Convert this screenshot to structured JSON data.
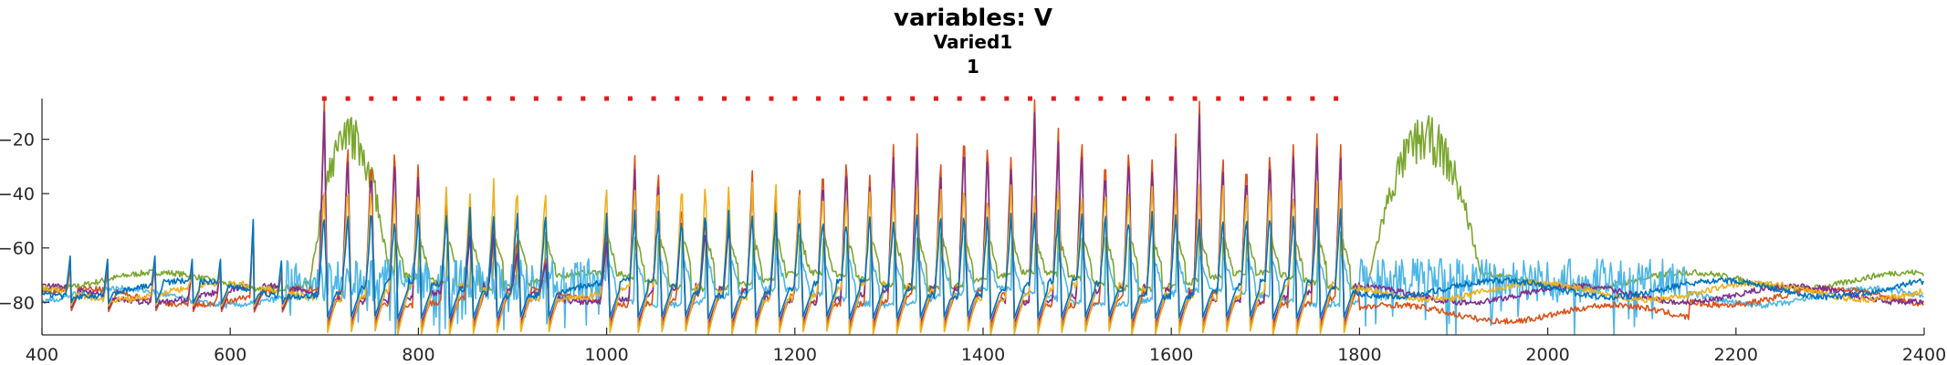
{
  "chart_data": {
    "type": "line",
    "title": [
      "variables: V",
      "Varied1",
      "1"
    ],
    "xlabel": "",
    "ylabel": "",
    "xlim": [
      400,
      2400
    ],
    "ylim": [
      -92,
      -5
    ],
    "xticks": [
      400,
      600,
      800,
      1000,
      1200,
      1400,
      1600,
      1800,
      2000,
      2200,
      2400
    ],
    "yticks": [
      -20,
      -40,
      -60,
      -80
    ],
    "grid": false,
    "legend": "none",
    "spike_markers": {
      "color": "#e31a1c",
      "y": -5,
      "x_start": 700,
      "x_end": 1775,
      "step": 25
    },
    "series": [
      {
        "color": "#7aa62e",
        "baseline": -72,
        "spike_to": -55,
        "burst_windows": [
          [
            685,
            770
          ],
          [
            1810,
            1930
          ]
        ],
        "burst_peak": -20
      },
      {
        "color": "#4db6e8",
        "baseline": -78,
        "spike_to": -62,
        "noise_windows": [
          [
            660,
            1000
          ],
          [
            1800,
            2150
          ]
        ]
      },
      {
        "color": "#d95319",
        "baseline": -78,
        "spike_to": -8,
        "trough": -90
      },
      {
        "color": "#7e2f8e",
        "baseline": -77,
        "spike_to": -15,
        "trough": -88
      },
      {
        "color": "#edb120",
        "baseline": -76,
        "spike_to": -40,
        "trough": -92
      },
      {
        "color": "#0072bd",
        "baseline": -75,
        "spike_to": -50,
        "trough": -86
      }
    ],
    "spikes_x": [
      700,
      725,
      750,
      775,
      800,
      830,
      855,
      880,
      905,
      935,
      1000,
      1030,
      1055,
      1080,
      1105,
      1130,
      1155,
      1180,
      1205,
      1230,
      1255,
      1280,
      1305,
      1330,
      1355,
      1380,
      1405,
      1430,
      1455,
      1480,
      1505,
      1530,
      1555,
      1580,
      1605,
      1630,
      1655,
      1680,
      1705,
      1730,
      1755,
      1780
    ],
    "spike_peaks": [
      -5,
      -20,
      -24,
      -20,
      -26,
      -42,
      -50,
      -50,
      -56,
      -63,
      -53,
      -26,
      -30,
      -42,
      -48,
      -46,
      -30,
      -42,
      -36,
      -28,
      -24,
      -30,
      -20,
      -18,
      -26,
      -14,
      -18,
      -23,
      -3,
      -16,
      -18,
      -24,
      -20,
      -24,
      -16,
      -6,
      -24,
      -26,
      -21,
      -18,
      -16,
      -22
    ],
    "early_spikes_x": [
      430,
      470,
      520,
      560,
      590,
      625,
      655
    ]
  }
}
